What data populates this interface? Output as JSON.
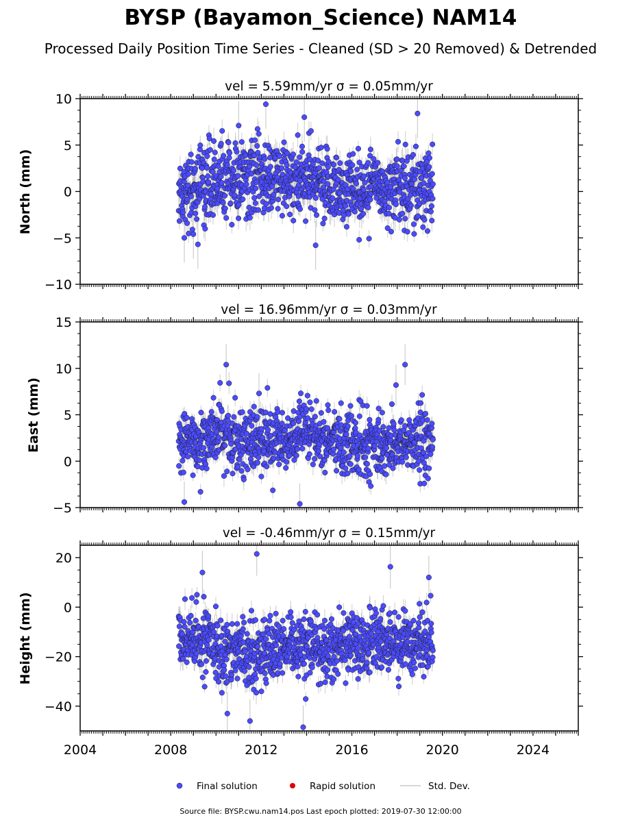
{
  "figure": {
    "title": "BYSP (Bayamon_Science) NAM14",
    "subtitle": "Processed Daily Position Time Series - Cleaned (SD > 20 Removed) & Detrended",
    "source_note": "Source file: BYSP.cwu.nam14.pos  Last epoch plotted: 2019-07-30 12:00:00"
  },
  "legend": {
    "final": "Final solution",
    "rapid": "Rapid solution",
    "std": "Std. Dev."
  },
  "colors": {
    "final": "#4b4bff",
    "final_edge": "#1a1a1a",
    "rapid": "#e00000",
    "stddev": "#b0b0b0"
  },
  "chart_data": [
    {
      "type": "scatter",
      "title": "vel = 5.59mm/yr   σ = 0.05mm/yr",
      "ylabel": "North (mm)",
      "xlim": [
        2004,
        2026
      ],
      "ylim": [
        -10,
        10
      ],
      "xticks": [
        2004,
        2008,
        2012,
        2016,
        2020,
        2024
      ],
      "yticks": [
        -10,
        -5,
        0,
        5,
        10
      ],
      "data_span": [
        2008.35,
        2019.58
      ],
      "series": [
        {
          "name": "Final solution",
          "level_points": [
            [
              2008.4,
              0.0
            ],
            [
              2010.0,
              1.2
            ],
            [
              2012.0,
              1.4
            ],
            [
              2014.0,
              1.0
            ],
            [
              2016.0,
              0.3
            ],
            [
              2018.0,
              0.6
            ],
            [
              2019.58,
              0.3
            ]
          ],
          "scatter_sd": 2.0,
          "err_sd": 1.2
        },
        {
          "name": "Rapid solution",
          "values": []
        }
      ],
      "outliers": [
        [
          2008.6,
          -5.0
        ],
        [
          2009.2,
          -5.7
        ],
        [
          2012.2,
          9.4
        ],
        [
          2013.9,
          8.0
        ],
        [
          2014.4,
          -5.8
        ],
        [
          2018.9,
          8.4
        ],
        [
          2011.0,
          7.1
        ],
        [
          2009.0,
          -4.6
        ]
      ]
    },
    {
      "type": "scatter",
      "title": "vel = 16.96mm/yr   σ = 0.03mm/yr",
      "ylabel": "East (mm)",
      "xlim": [
        2004,
        2026
      ],
      "ylim": [
        -5,
        15
      ],
      "xticks": [
        2004,
        2008,
        2012,
        2016,
        2020,
        2024
      ],
      "yticks": [
        -5,
        0,
        5,
        10,
        15
      ],
      "data_span": [
        2008.35,
        2019.58
      ],
      "series": [
        {
          "name": "Final solution",
          "level_points": [
            [
              2008.4,
              1.5
            ],
            [
              2010.0,
              3.0
            ],
            [
              2012.0,
              2.0
            ],
            [
              2014.0,
              2.8
            ],
            [
              2015.5,
              2.0
            ],
            [
              2017.0,
              1.6
            ],
            [
              2019.58,
              2.2
            ]
          ],
          "scatter_sd": 1.7,
          "err_sd": 1.0
        },
        {
          "name": "Rapid solution",
          "values": []
        }
      ],
      "outliers": [
        [
          2010.45,
          10.4
        ],
        [
          2018.35,
          10.4
        ],
        [
          2017.95,
          8.2
        ],
        [
          2008.6,
          -4.4
        ],
        [
          2013.7,
          -4.6
        ],
        [
          2011.9,
          7.3
        ]
      ]
    },
    {
      "type": "scatter",
      "title": "vel = -0.46mm/yr   σ = 0.15mm/yr",
      "ylabel": "Height (mm)",
      "xlim": [
        2004,
        2026
      ],
      "ylim": [
        -50,
        25
      ],
      "xticks": [
        2004,
        2008,
        2012,
        2016,
        2020,
        2024
      ],
      "yticks": [
        -40,
        -20,
        0,
        20
      ],
      "data_span": [
        2008.35,
        2019.58
      ],
      "series": [
        {
          "name": "Final solution",
          "level_points": [
            [
              2008.4,
              -12.0
            ],
            [
              2010.0,
              -16.0
            ],
            [
              2012.0,
              -18.0
            ],
            [
              2014.0,
              -17.0
            ],
            [
              2016.0,
              -15.0
            ],
            [
              2018.0,
              -14.0
            ],
            [
              2019.58,
              -13.0
            ]
          ],
          "scatter_sd": 6.5,
          "err_sd": 4.0
        },
        {
          "name": "Rapid solution",
          "values": []
        }
      ],
      "outliers": [
        [
          2011.8,
          21.5
        ],
        [
          2017.7,
          16.3
        ],
        [
          2013.85,
          -48.5
        ],
        [
          2011.5,
          -46.0
        ],
        [
          2010.5,
          -43.0
        ],
        [
          2009.4,
          14.0
        ],
        [
          2019.4,
          12.0
        ]
      ]
    }
  ]
}
